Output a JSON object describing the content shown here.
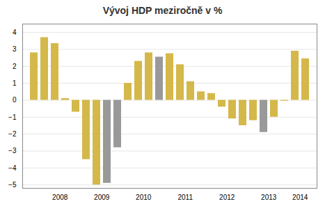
{
  "chart_data": {
    "type": "bar",
    "title": "Vývoj HDP meziročně v %",
    "categories": [
      null,
      null,
      null,
      "2008",
      null,
      null,
      null,
      "2009",
      null,
      null,
      null,
      "2010",
      null,
      null,
      null,
      "2011",
      null,
      null,
      null,
      "2012",
      null,
      null,
      null,
      "2013",
      null,
      null,
      "2014"
    ],
    "values": [
      2.8,
      3.7,
      3.35,
      0.1,
      -0.7,
      -3.5,
      -5.0,
      -4.9,
      -2.8,
      1.0,
      2.3,
      2.8,
      2.55,
      2.75,
      2.1,
      1.1,
      0.5,
      0.4,
      -0.4,
      -1.1,
      -1.5,
      -1.2,
      -1.9,
      -1.0,
      -0.05,
      2.9,
      2.45
    ],
    "colors": [
      "#d4b84a",
      "#d4b84a",
      "#d4b84a",
      "#d4b84a",
      "#d4b84a",
      "#d4b84a",
      "#d4b84a",
      "#999999",
      "#999999",
      "#d4b84a",
      "#d4b84a",
      "#d4b84a",
      "#999999",
      "#d4b84a",
      "#d4b84a",
      "#d4b84a",
      "#d4b84a",
      "#d4b84a",
      "#d4b84a",
      "#d4b84a",
      "#d4b84a",
      "#d4b84a",
      "#999999",
      "#d4b84a",
      "#d4b84a",
      "#d4b84a",
      "#d4b84a"
    ],
    "ylim": [
      -5.2,
      4.5
    ],
    "yticks": [
      -5,
      -4,
      -3,
      -2,
      -1,
      0,
      1,
      2,
      3,
      4
    ],
    "grid": true
  }
}
